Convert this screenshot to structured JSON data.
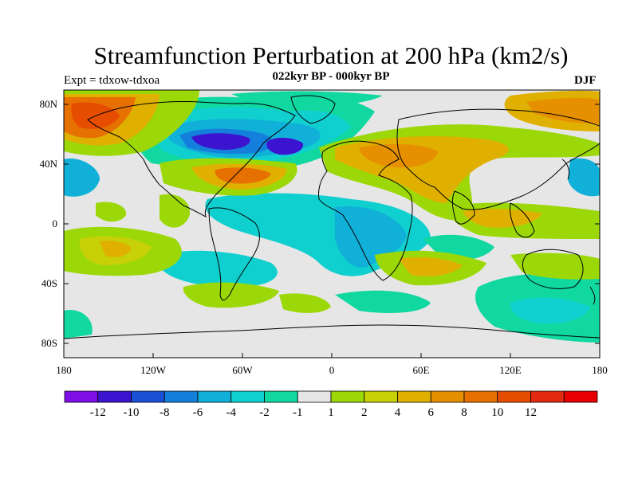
{
  "title": "Streamfunction Perturbation at 200 hPa (km2/s)",
  "subtitle_left": "Expt = tdxow-tdxoa",
  "subtitle_center": "022kyr BP - 000kyr BP",
  "subtitle_right": "DJF",
  "lat_labels": [
    "80N",
    "40N",
    "0",
    "40S",
    "80S"
  ],
  "lon_labels": [
    "180",
    "120W",
    "60W",
    "0",
    "60E",
    "120E",
    "180"
  ],
  "colorbar": {
    "colors": [
      "#7d0ee6",
      "#3c14cf",
      "#1b4fd6",
      "#1480dc",
      "#10b0d8",
      "#10cfcf",
      "#10d8a0",
      "#e6e6e6",
      "#9cd808",
      "#c8d008",
      "#e0b000",
      "#e69000",
      "#e67000",
      "#e64d00",
      "#e22a10",
      "#e60000"
    ],
    "labels": [
      "-12",
      "-10",
      "-8",
      "-6",
      "-4",
      "-2",
      "-1",
      "1",
      "2",
      "4",
      "6",
      "8",
      "10",
      "12"
    ]
  },
  "season": "DJF",
  "colors": {
    "land_outline": "#000000",
    "no_change": "#e6e6e6"
  }
}
